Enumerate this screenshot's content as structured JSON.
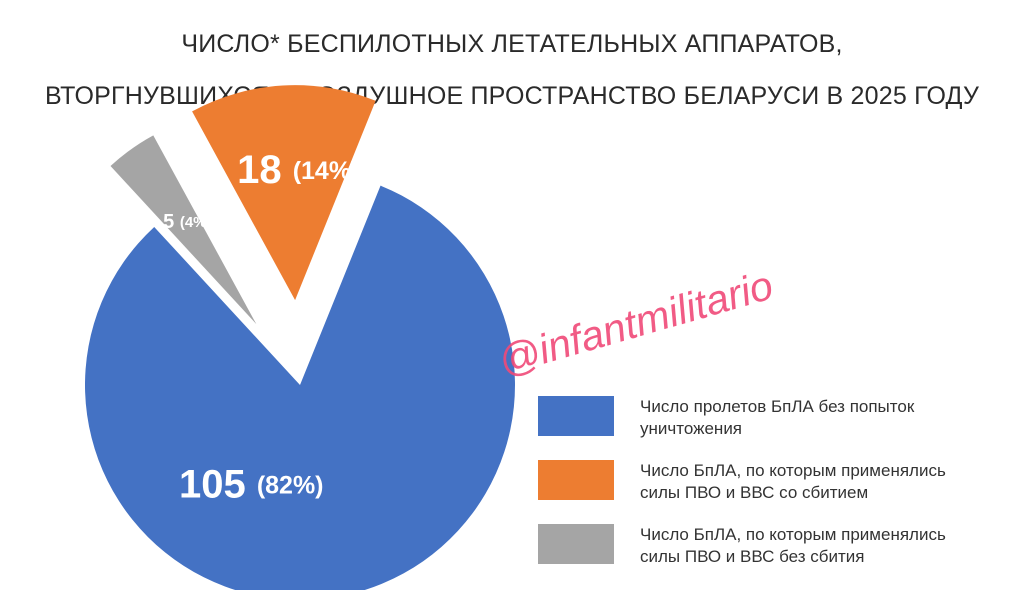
{
  "title": {
    "line1": "ЧИСЛО* БЕСПИЛОТНЫХ ЛЕТАТЕЛЬНЫХ АППАРАТОВ,",
    "line2": "ВТОРГНУВШИХСЯ В ВОЗДУШНОЕ ПРОСТРАНСТВО БЕЛАРУСИ В 2025 ГОДУ"
  },
  "watermark": "@infantmilitario",
  "chart_data": {
    "type": "pie",
    "title": "ЧИСЛО* БЕСПИЛОТНЫХ ЛЕТАТЕЛЬНЫХ АППАРАТОВ, ВТОРГНУВШИХСЯ В ВОЗДУШНОЕ ПРОСТРАНСТВО БЕЛАРУСИ В 2025 ГОДУ",
    "legend_position": "right",
    "slices": [
      {
        "label": "Число пролетов БпЛА без попыток уничтожения",
        "legend_lines": [
          "Число пролетов БпЛА без попыток",
          "уничтожения"
        ],
        "value": 105,
        "value_label": "105",
        "percent_label": "(82%)",
        "color": "#4472c4"
      },
      {
        "label": "Число БпЛА, по которым применялись силы ПВО и ВВС со сбитием",
        "legend_lines": [
          "Число БпЛА, по которым применялись",
          "силы ПВО и ВВС со сбитием"
        ],
        "value": 18,
        "value_label": "18",
        "percent_label": "(14%)",
        "color": "#ed7d31"
      },
      {
        "label": "Число БпЛА, по которым применялись силы ПВО и ВВС без сбития",
        "legend_lines": [
          "Число БпЛА, по которым применялись",
          "силы ПВО и ВВС без сбития"
        ],
        "value": 5,
        "value_label": "5",
        "percent_label": "(4%)",
        "color": "#a5a5a5"
      }
    ]
  }
}
